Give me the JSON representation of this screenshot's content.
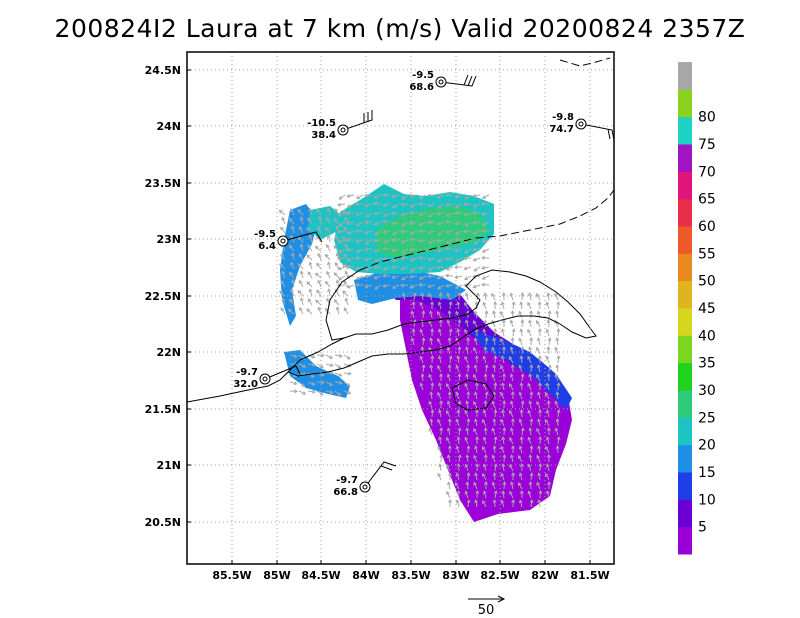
{
  "title": "200824I2 Laura at 7 km (m/s) Valid 20200824 2357Z",
  "longitude_labels": [
    "85.5W",
    "85W",
    "84.5W",
    "84W",
    "83.5W",
    "83W",
    "82.5W",
    "82W",
    "81.5W"
  ],
  "latitude_labels": [
    "24.5N",
    "24N",
    "23.5N",
    "23N",
    "22.5N",
    "22N",
    "21.5N",
    "21N",
    "20.5N"
  ],
  "colorbar": {
    "labels": [
      "5",
      "10",
      "15",
      "20",
      "25",
      "30",
      "35",
      "40",
      "45",
      "50",
      "55",
      "60",
      "65",
      "70",
      "75",
      "80"
    ],
    "colors": [
      "#9b00d8",
      "#6a00d4",
      "#1f3ee8",
      "#1f8fe6",
      "#1ec4c4",
      "#2ecc7a",
      "#1ed21e",
      "#7ad61e",
      "#d6d61e",
      "#e0b41e",
      "#e88a1e",
      "#ec5a2a",
      "#e82e4a",
      "#e0147a",
      "#a014c4",
      "#1ed2c8",
      "#8ad21e",
      "#a8a8a8"
    ]
  },
  "stations": [
    {
      "temp": "-9.5",
      "value": "68.6"
    },
    {
      "temp": "-10.5",
      "value": "38.4"
    },
    {
      "temp": "-9.8",
      "value": "74.7"
    },
    {
      "temp": "-9.5",
      "value": "6.4"
    },
    {
      "temp": "-9.7",
      "value": "32.0"
    },
    {
      "temp": "-9.7",
      "value": "66.8"
    }
  ],
  "reference_vector_label": "50",
  "colors": {
    "grid": "#a0a0a0",
    "coast": "#000000",
    "vector": "#a8a8a8"
  }
}
